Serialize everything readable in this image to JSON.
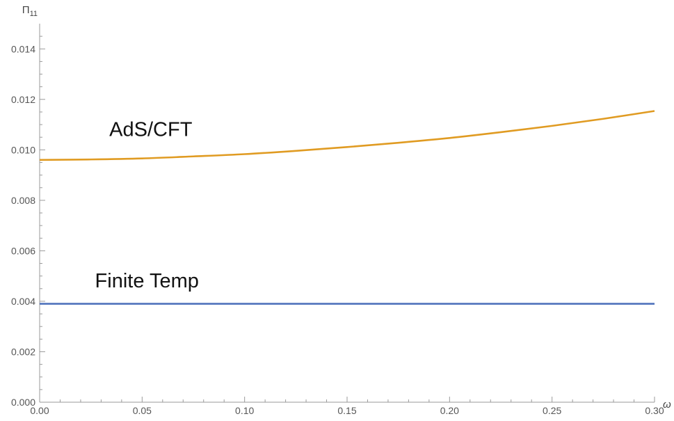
{
  "chart_data": {
    "type": "line",
    "xlabel": "ω",
    "ylabel": "Π",
    "ylabel_subscript": "11",
    "xlim": [
      0,
      0.3
    ],
    "ylim": [
      0,
      0.015
    ],
    "grid": false,
    "x_ticks": [
      "0.00",
      "0.05",
      "0.10",
      "0.15",
      "0.20",
      "0.25",
      "0.30"
    ],
    "y_ticks": [
      "0.000",
      "0.002",
      "0.004",
      "0.006",
      "0.008",
      "0.010",
      "0.012",
      "0.014"
    ],
    "series": [
      {
        "name": "AdS/CFT",
        "color": "#e09b22",
        "x": [
          0.0,
          0.025,
          0.05,
          0.075,
          0.1,
          0.125,
          0.15,
          0.175,
          0.2,
          0.225,
          0.25,
          0.275,
          0.3
        ],
        "y": [
          0.0096,
          0.00962,
          0.00966,
          0.00974,
          0.00983,
          0.00996,
          0.01011,
          0.01028,
          0.01047,
          0.0107,
          0.01095,
          0.01123,
          0.01154
        ]
      },
      {
        "name": "Finite Temp",
        "color": "#4f72bc",
        "x": [
          0.0,
          0.3
        ],
        "y": [
          0.0039,
          0.0039
        ]
      }
    ],
    "annotations": [
      {
        "text": "AdS/CFT",
        "x": 0.034,
        "y": 0.01055
      },
      {
        "text": "Finite Temp",
        "x": 0.027,
        "y": 0.00455
      }
    ]
  }
}
